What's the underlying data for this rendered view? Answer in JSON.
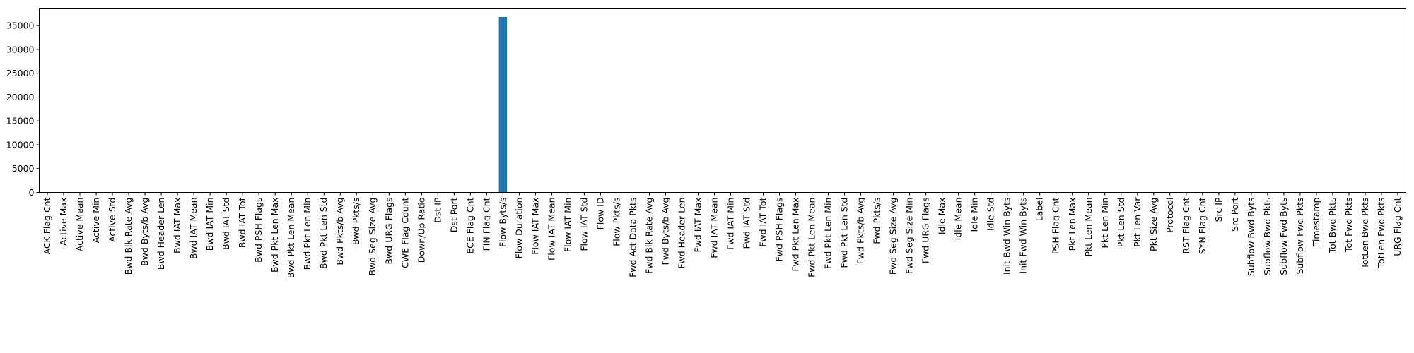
{
  "chart_data": {
    "type": "bar",
    "title": "",
    "xlabel": "",
    "ylabel": "",
    "ylim": [
      0,
      38500
    ],
    "yticks": [
      0,
      5000,
      10000,
      15000,
      20000,
      25000,
      30000,
      35000
    ],
    "grid": false,
    "legend": "none",
    "bar_color": "#1f77b4",
    "categories": [
      "ACK Flag Cnt",
      "Active Max",
      "Active Mean",
      "Active Min",
      "Active Std",
      "Bwd Blk Rate Avg",
      "Bwd Byts/b Avg",
      "Bwd Header Len",
      "Bwd IAT Max",
      "Bwd IAT Mean",
      "Bwd IAT Min",
      "Bwd IAT Std",
      "Bwd IAT Tot",
      "Bwd PSH Flags",
      "Bwd Pkt Len Max",
      "Bwd Pkt Len Mean",
      "Bwd Pkt Len Min",
      "Bwd Pkt Len Std",
      "Bwd Pkts/b Avg",
      "Bwd Pkts/s",
      "Bwd Seg Size Avg",
      "Bwd URG Flags",
      "CWE Flag Count",
      "Down/Up Ratio",
      "Dst IP",
      "Dst Port",
      "ECE Flag Cnt",
      "FIN Flag Cnt",
      "Flow Byts/s",
      "Flow Duration",
      "Flow IAT Max",
      "Flow IAT Mean",
      "Flow IAT Min",
      "Flow IAT Std",
      "Flow ID",
      "Flow Pkts/s",
      "Fwd Act Data Pkts",
      "Fwd Blk Rate Avg",
      "Fwd Byts/b Avg",
      "Fwd Header Len",
      "Fwd IAT Max",
      "Fwd IAT Mean",
      "Fwd IAT Min",
      "Fwd IAT Std",
      "Fwd IAT Tot",
      "Fwd PSH Flags",
      "Fwd Pkt Len Max",
      "Fwd Pkt Len Mean",
      "Fwd Pkt Len Min",
      "Fwd Pkt Len Std",
      "Fwd Pkts/b Avg",
      "Fwd Pkts/s",
      "Fwd Seg Size Avg",
      "Fwd Seg Size Min",
      "Fwd URG Flags",
      "Idle Max",
      "Idle Mean",
      "Idle Min",
      "Idle Std",
      "Init Bwd Win Byts",
      "Init Fwd Win Byts",
      "Label",
      "PSH Flag Cnt",
      "Pkt Len Max",
      "Pkt Len Mean",
      "Pkt Len Min",
      "Pkt Len Std",
      "Pkt Len Var",
      "Pkt Size Avg",
      "Protocol",
      "RST Flag Cnt",
      "SYN Flag Cnt",
      "Src IP",
      "Src Port",
      "Subflow Bwd Byts",
      "Subflow Bwd Pkts",
      "Subflow Fwd Byts",
      "Subflow Fwd Pkts",
      "Timestamp",
      "Tot Bwd Pkts",
      "Tot Fwd Pkts",
      "TotLen Bwd Pkts",
      "TotLen Fwd Pkts",
      "URG Flag Cnt"
    ],
    "values": [
      0,
      0,
      0,
      0,
      0,
      0,
      0,
      0,
      0,
      0,
      0,
      0,
      0,
      0,
      0,
      0,
      0,
      0,
      0,
      0,
      0,
      0,
      0,
      0,
      0,
      0,
      0,
      0,
      36800,
      0,
      0,
      0,
      0,
      0,
      0,
      0,
      0,
      0,
      0,
      0,
      0,
      0,
      0,
      0,
      0,
      0,
      0,
      0,
      0,
      0,
      0,
      0,
      0,
      0,
      0,
      0,
      0,
      0,
      0,
      0,
      0,
      0,
      0,
      0,
      0,
      0,
      0,
      0,
      0,
      0,
      0,
      0,
      0,
      0,
      0,
      0,
      0,
      0,
      0,
      0,
      0,
      0,
      0,
      0
    ]
  }
}
